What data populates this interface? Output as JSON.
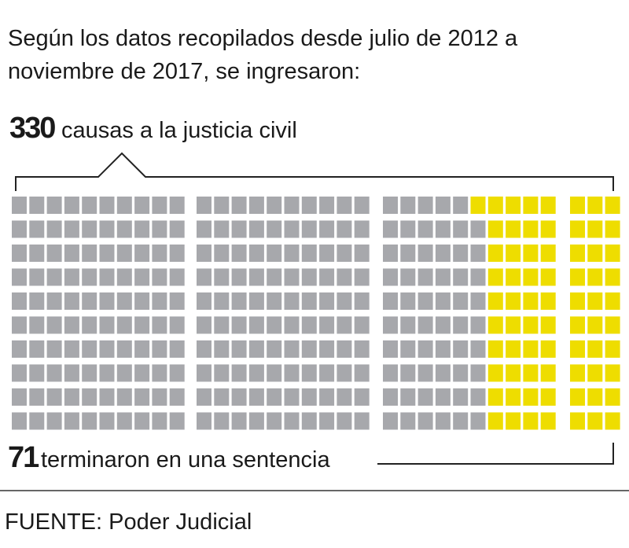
{
  "header": {
    "title": "Según los datos recopilados desde julio de 2012 a noviembre de 2017, se ingresaron:"
  },
  "total": {
    "value": 330,
    "label": "causas a la justicia civil",
    "color": "#a7a8ac"
  },
  "sentenced": {
    "value": 71,
    "label": "terminaron en una sentencia",
    "color": "#eedd00"
  },
  "source": "FUENTE: Poder Judicial"
}
